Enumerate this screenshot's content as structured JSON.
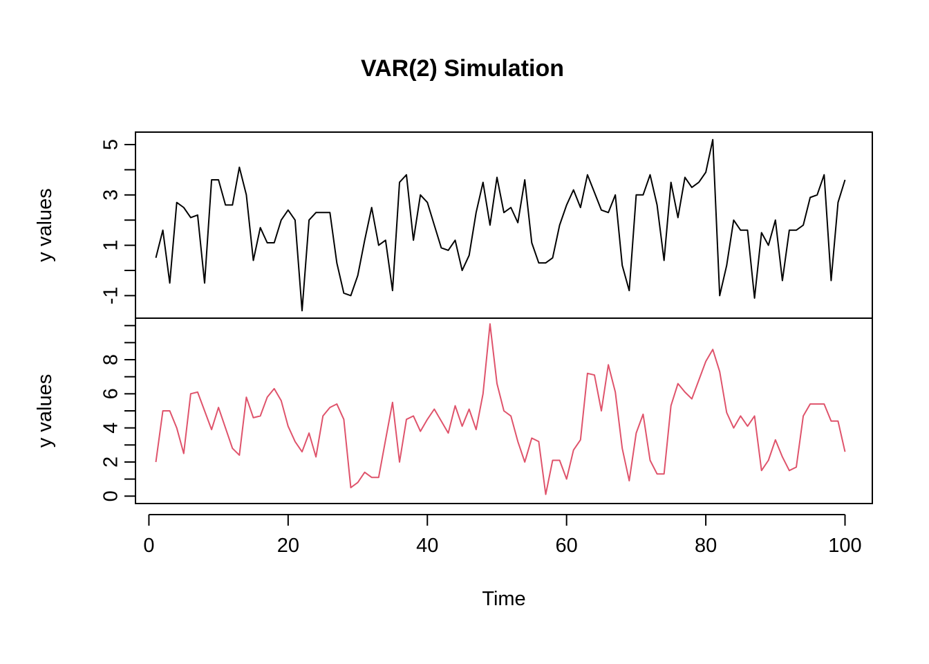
{
  "chart_data": {
    "type": "line",
    "title": "VAR(2) Simulation",
    "xlabel": "Time",
    "xlim": [
      1,
      100
    ],
    "x_ticks": [
      0,
      20,
      40,
      60,
      80,
      100
    ],
    "colors": {
      "series_1": "#000000",
      "series_2": "#DF536B"
    },
    "panels": [
      {
        "ylabel": "y values",
        "ylim": [
          -1.6,
          5.2
        ],
        "y_ticks": [
          5,
          3,
          1,
          -1
        ],
        "y_tick_labels": [
          "5",
          "3",
          "1",
          "-1"
        ],
        "series": [
          {
            "color": "#000000",
            "x_start": 1,
            "values": [
              0.5,
              1.6,
              -0.5,
              2.7,
              2.5,
              2.1,
              2.2,
              -0.5,
              3.6,
              3.6,
              2.6,
              2.6,
              4.1,
              3.0,
              0.4,
              1.7,
              1.1,
              1.1,
              2.0,
              2.4,
              2.0,
              -1.6,
              2.0,
              2.3,
              2.3,
              2.3,
              0.3,
              -0.9,
              -1.0,
              -0.2,
              1.2,
              2.5,
              1.0,
              1.2,
              -0.8,
              3.5,
              3.8,
              1.2,
              3.0,
              2.7,
              1.8,
              0.9,
              0.8,
              1.2,
              0.0,
              0.6,
              2.3,
              3.5,
              1.8,
              3.7,
              2.3,
              2.5,
              1.9,
              3.6,
              1.1,
              0.3,
              0.3,
              0.5,
              1.8,
              2.6,
              3.2,
              2.5,
              3.8,
              3.1,
              2.4,
              2.3,
              3.0,
              0.2,
              -0.8,
              3.0,
              3.0,
              3.8,
              2.6,
              0.4,
              3.5,
              2.1,
              3.7,
              3.3,
              3.5,
              3.9,
              5.2,
              -1.0,
              0.2,
              2.0,
              1.6,
              1.6,
              -1.1,
              1.5,
              1.0,
              2.0,
              -0.4,
              1.6,
              1.6,
              1.8,
              2.9,
              3.0,
              3.8,
              -0.4,
              2.7,
              3.6
            ]
          }
        ]
      },
      {
        "ylabel": "y values",
        "ylim": [
          0,
          10
        ],
        "y_ticks": [
          0,
          2,
          4,
          6,
          8
        ],
        "y_tick_labels": [
          "0",
          "2",
          "4",
          "6",
          "8"
        ],
        "series": [
          {
            "color": "#DF536B",
            "x_start": 1,
            "values": [
              2.0,
              5.0,
              5.0,
              4.0,
              2.5,
              6.0,
              6.1,
              5.0,
              3.9,
              5.2,
              4.0,
              2.8,
              2.4,
              5.8,
              4.6,
              4.7,
              5.8,
              6.3,
              5.6,
              4.1,
              3.2,
              2.6,
              3.7,
              2.3,
              4.7,
              5.2,
              5.4,
              4.5,
              0.5,
              0.8,
              1.4,
              1.1,
              1.1,
              3.3,
              5.5,
              2.0,
              4.5,
              4.7,
              3.8,
              4.5,
              5.1,
              4.4,
              3.7,
              5.3,
              4.1,
              5.1,
              3.9,
              6.0,
              10.1,
              6.6,
              5.0,
              4.7,
              3.2,
              2.0,
              3.4,
              3.2,
              0.1,
              2.1,
              2.1,
              1.0,
              2.7,
              3.3,
              7.2,
              7.1,
              5.0,
              7.7,
              6.1,
              2.8,
              0.9,
              3.7,
              4.8,
              2.1,
              1.3,
              1.3,
              5.3,
              6.6,
              6.1,
              5.7,
              6.8,
              7.9,
              8.6,
              7.3,
              4.9,
              4.0,
              4.7,
              4.1,
              4.7,
              1.5,
              2.1,
              3.3,
              2.3,
              1.5,
              1.7,
              4.7,
              5.4,
              5.4,
              5.4,
              4.4,
              4.4,
              2.6
            ]
          }
        ]
      }
    ]
  }
}
